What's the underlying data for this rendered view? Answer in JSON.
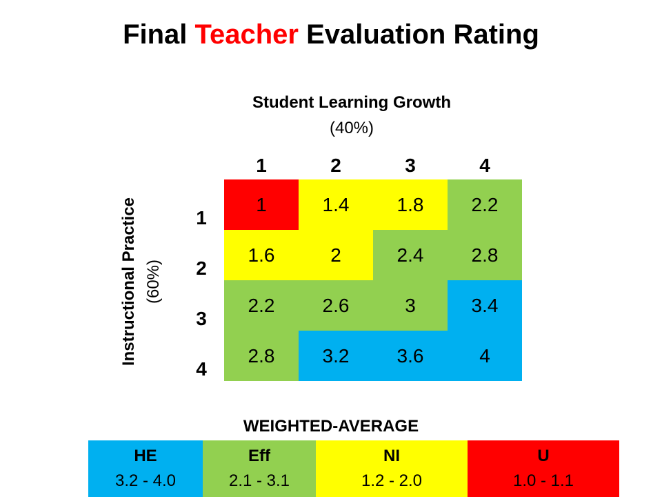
{
  "title": {
    "part1": "Final ",
    "accent": "Teacher",
    "part2": " Evaluation Rating"
  },
  "column_header": {
    "label": "Student Learning Growth",
    "pct": "(40%)"
  },
  "row_header": {
    "label": "Instructional Practice",
    "pct": "(60%)"
  },
  "column_numbers": [
    "1",
    "2",
    "3",
    "4"
  ],
  "row_numbers": [
    "1",
    "2",
    "3",
    "4"
  ],
  "grid": [
    [
      "1",
      "1.4",
      "1.8",
      "2.2"
    ],
    [
      "1.6",
      "2",
      "2.4",
      "2.8"
    ],
    [
      "2.2",
      "2.6",
      "3",
      "3.4"
    ],
    [
      "2.8",
      "3.2",
      "3.6",
      "4"
    ]
  ],
  "grid_colors": [
    [
      "#ff0000",
      "#ffff00",
      "#ffff00",
      "#92d050"
    ],
    [
      "#ffff00",
      "#ffff00",
      "#92d050",
      "#92d050"
    ],
    [
      "#92d050",
      "#92d050",
      "#92d050",
      "#00b0f0"
    ],
    [
      "#92d050",
      "#00b0f0",
      "#00b0f0",
      "#00b0f0"
    ]
  ],
  "weighted_average_title": "WEIGHTED-AVERAGE",
  "legend": [
    {
      "abbr": "HE",
      "range": "3.2 - 4.0",
      "color": "#00b0f0"
    },
    {
      "abbr": "Eff",
      "range": "2.1 - 3.1",
      "color": "#92d050"
    },
    {
      "abbr": "NI",
      "range": "1.2 - 2.0",
      "color": "#ffff00"
    },
    {
      "abbr": "U",
      "range": "1.0 - 1.1",
      "color": "#ff0000"
    }
  ]
}
